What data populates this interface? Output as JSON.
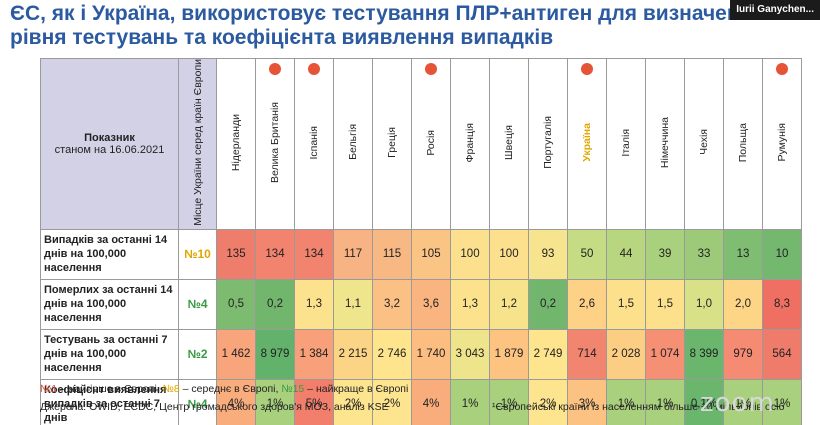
{
  "title": {
    "line1": "ЄС, як і Україна, використовує тестування ПЛР+антиген для визначення",
    "line2": "рівня тестувань та коефіцієнта виявлення випадків"
  },
  "participant_badge": "Iurii Ganychen...",
  "table": {
    "indicator_header": "Показник",
    "indicator_subheader": "станом на 16.06.2021",
    "place_header": "Місце України серед країн Європи",
    "countries": [
      {
        "name": "Нідерланди",
        "dot": false
      },
      {
        "name": "Велика Британія",
        "dot": true
      },
      {
        "name": "Іспанія",
        "dot": true
      },
      {
        "name": "Бельгія",
        "dot": false
      },
      {
        "name": "Греція",
        "dot": false
      },
      {
        "name": "Росія",
        "dot": true
      },
      {
        "name": "Франція",
        "dot": false
      },
      {
        "name": "Швеція",
        "dot": false
      },
      {
        "name": "Португалія",
        "dot": false
      },
      {
        "name": "Україна",
        "dot": true
      },
      {
        "name": "Італія",
        "dot": false
      },
      {
        "name": "Німеччина",
        "dot": false
      },
      {
        "name": "Чехія",
        "dot": false
      },
      {
        "name": "Польща",
        "dot": false
      },
      {
        "name": "Румунія",
        "dot": true
      }
    ],
    "rows": [
      {
        "label": "Випадків за останні 14 днів на 100,000 населення",
        "rank": "№10",
        "rank_color": "#e0a600",
        "values": [
          "135",
          "134",
          "134",
          "117",
          "115",
          "105",
          "100",
          "100",
          "93",
          "50",
          "44",
          "39",
          "33",
          "13",
          "10"
        ],
        "colors": [
          "#ef7d6b",
          "#f2836e",
          "#f2836e",
          "#f7b383",
          "#f7b884",
          "#fac485",
          "#fde08e",
          "#fde08e",
          "#f6e48f",
          "#c6dc84",
          "#b7d67f",
          "#a9d07c",
          "#9dca79",
          "#7fbd72",
          "#74b86f"
        ]
      },
      {
        "label": "Померлих за останні 14 днів на 100,000 населення",
        "rank": "№4",
        "rank_color": "#3a9a45",
        "values": [
          "0,5",
          "0,2",
          "1,3",
          "1,1",
          "3,2",
          "3,6",
          "1,3",
          "1,2",
          "0,2",
          "2,6",
          "1,5",
          "1,5",
          "1,0",
          "2,0",
          "8,3"
        ],
        "colors": [
          "#7dbc70",
          "#72b66d",
          "#fde28d",
          "#eee58d",
          "#fbc083",
          "#fab47f",
          "#fde28d",
          "#f8e38d",
          "#72b66d",
          "#fdd186",
          "#fde08b",
          "#fde08b",
          "#d8e188",
          "#fdd587",
          "#ef6f62"
        ]
      },
      {
        "label": "Тестувань за останні 7 днів на 100,000 населення",
        "rank": "№2",
        "rank_color": "#3a9a45",
        "values": [
          "1 462",
          "8 979",
          "1 384",
          "2 215",
          "2 746",
          "1 740",
          "3 043",
          "1 879",
          "2 749",
          "714",
          "2 028",
          "1 074",
          "8 399",
          "979",
          "564"
        ],
        "colors": [
          "#f8a57c",
          "#63b26c",
          "#f7a07a",
          "#fcd486",
          "#fde48d",
          "#fbbd80",
          "#eee48c",
          "#fcc381",
          "#fde48d",
          "#f2856f",
          "#fcce84",
          "#f59075",
          "#6bb66d",
          "#f48b72",
          "#ef7b6b"
        ]
      },
      {
        "label": "Коефіцієнт виявлення випадків за останні 7 днів",
        "rank": "№4",
        "rank_color": "#3a9a45",
        "values": [
          "4%",
          "1%",
          "5%",
          "2%",
          "2%",
          "4%",
          "1%",
          "1%",
          "2%",
          "3%",
          "1%",
          "1%",
          "0,1%",
          "1%",
          "1%"
        ],
        "colors": [
          "#f9ad7d",
          "#a8d07d",
          "#f27e6c",
          "#fde48e",
          "#fde48e",
          "#f9ad7d",
          "#a8d07d",
          "#a8d07d",
          "#fde48e",
          "#fcc282",
          "#a8d07d",
          "#a8d07d",
          "#6bb66d",
          "#a8d07d",
          "#a8d07d"
        ]
      }
    ]
  },
  "legend": {
    "r1": "№1",
    "r1_text": " – найгірше в Європі,  ",
    "r8": "№8",
    "r8_text": " – середнє в Європі,  ",
    "r15": "№15",
    "r15_text": " – найкраще в Європі"
  },
  "sources": "Джерела: OWID, ECDC, Центр громадського здоров'я МОЗ, аналіз KSE",
  "footnote": "¹Європейські країни із населенням більше 10 мільйонів осіб",
  "watermark": "zoom"
}
